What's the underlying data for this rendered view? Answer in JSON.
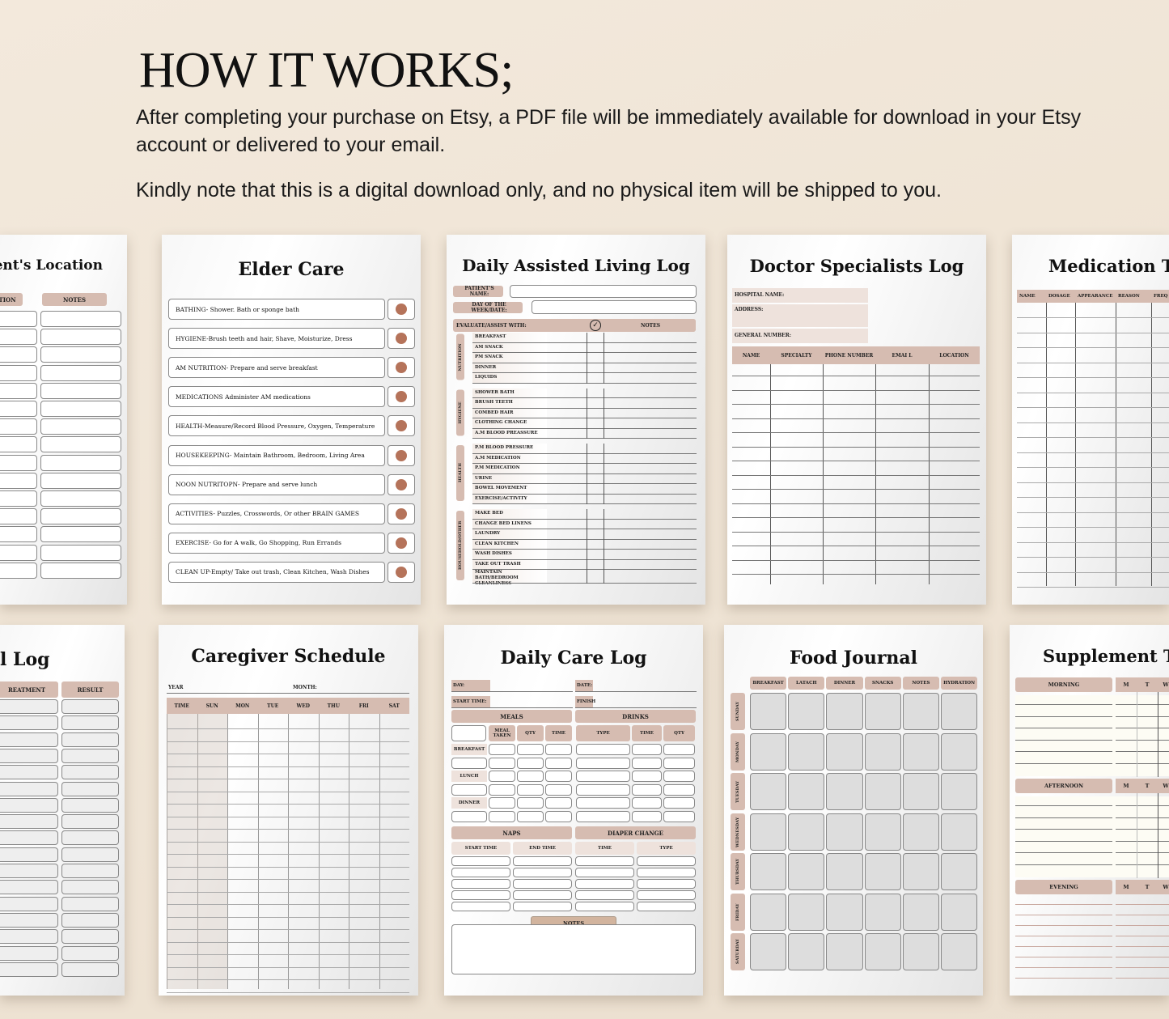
{
  "header": {
    "title": "HOW IT WORKS;",
    "line1": "After completing your purchase on Etsy, a PDF file will be immediately available for download in your Etsy account or delivered to your email.",
    "line2": "Kindly note that this is a digital download only, and no physical item will be shipped to you."
  },
  "colors": {
    "accent": "#d6bcb1",
    "dot": "#b5735a",
    "background": "#efe4d5"
  },
  "location": {
    "title": "ent's Location",
    "cols": [
      "TION",
      "NOTES"
    ]
  },
  "elder": {
    "title": "Elder Care",
    "items": [
      "BATHING- Shower. Bath or sponge bath",
      "HYGIENE-Brush teeth and hair, Shave, Moisturize, Dress",
      "AM NUTRITION- Prepare and serve breakfast",
      "MEDICATIONS Administer AM medications",
      "HEALTH-Measure/Record Blood Pressure, Oxygen, Temperature",
      "HOUSEKEEPING- Maintain Bathroom, Bedroom, Living Area",
      "NOON NUTRITOPN- Prepare and serve lunch",
      "ACTIVITIES- Puzzles, Crosswords, Or other BRAIN GAMES",
      "EXERCISE- Go for A walk, Go Shopping, Run Errands",
      "CLEAN UP-Empty/ Take out trash, Clean Kitchen, Wash Dishes"
    ]
  },
  "assisted": {
    "title": "Daily Assisted Living Log",
    "patient": "PATIENT'S NAME:",
    "day": "DAY OF THE WEEK/DATE:",
    "evaluate": "EVALUATE/ASSIST WITH:",
    "notes": "NOTES",
    "groups": [
      {
        "name": "NUTRITION",
        "items": [
          "BREAKFAST",
          "AM SNACK",
          "PM SNACK",
          "DINNER",
          "LIQUIDS"
        ]
      },
      {
        "name": "HYGIENE",
        "items": [
          "SHOWER BATH",
          "BRUSH TEETH",
          "COMBED HAIR",
          "CLOTHING CHANGE",
          "A.M BLOOD PREASSURE"
        ]
      },
      {
        "name": "HEALTH",
        "items": [
          "P.M BLOOD PRESSURE",
          "A.M MEDICATION",
          "P.M MEDICATION",
          "URINE",
          "BOWEL MOVEMENT",
          "EXERCISE/ACTIVITY"
        ]
      },
      {
        "name": "HOUSEHOLD/OTHER",
        "items": [
          "MAKE BED",
          "CHANGE BED LINENS",
          "LAUNDRY",
          "CLEAN KITCHEN",
          "WASH DISHES",
          "TAKE OUT TRASH",
          "MAINTAIN BATH/BEDROOM CLEANLINESS"
        ]
      }
    ]
  },
  "doctor": {
    "title": "Doctor Specialists Log",
    "hospital": "HOSPITAL NAME:",
    "address": "ADDRESS:",
    "general": "GENERAL NUMBER:",
    "cols": [
      "NAME",
      "SPECIALTY",
      "PHONE NUMBER",
      "EMAI L",
      "LOCATION"
    ]
  },
  "medication": {
    "title": "Medication T",
    "cols": [
      "NAME",
      "DOSAGE",
      "APPEARANCE",
      "REASON",
      "FREQ"
    ]
  },
  "treatment": {
    "title": "l Log",
    "cols": [
      "REATMENT",
      "RESULT"
    ]
  },
  "caregiver": {
    "title": "Caregiver Schedule",
    "year": "YEAR",
    "month": "MONTH:",
    "cols": [
      "TIME",
      "SUN",
      "MON",
      "TUE",
      "WED",
      "THU",
      "FRI",
      "SAT"
    ]
  },
  "dailycare": {
    "title": "Daily Care Log",
    "day": "DAY:",
    "date": "DATE:",
    "start": "START TIME:",
    "finish": "FINISH",
    "meals": "MEALS",
    "drinks": "DRINKS",
    "meal_cols": [
      "MEAL TAKEN",
      "QTY",
      "TIME"
    ],
    "drink_cols": [
      "TYPE",
      "TIME",
      "QTY"
    ],
    "meal_rows": [
      "BREAKFAST",
      "LUNCH",
      "DINNER"
    ],
    "naps": "NAPS",
    "diaper": "DIAPER CHANGE",
    "nap_cols": [
      "START TIME",
      "END TIME"
    ],
    "diaper_cols": [
      "TIME",
      "TYPE"
    ],
    "notes": "NOTES"
  },
  "food": {
    "title": "Food Journal",
    "cols": [
      "BREAKFAST",
      "LATACH",
      "DINNER",
      "SNACKS",
      "NOTES",
      "HYDRATION"
    ],
    "days": [
      "SUNDAY",
      "MONDAY",
      "TUESDAY",
      "WEDNESDAY",
      "THURSDAY",
      "FRIDAY",
      "SATURDAY"
    ]
  },
  "supplement": {
    "title": "Supplement T",
    "sections": [
      "MORNING",
      "AFTERNOON",
      "EVENING"
    ],
    "days": [
      "M",
      "T",
      "W"
    ]
  }
}
